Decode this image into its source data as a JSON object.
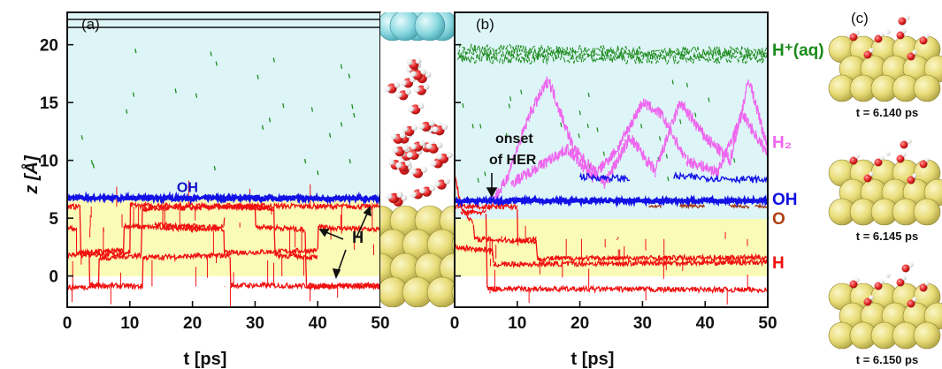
{
  "chart_data": [
    {
      "type": "line",
      "panel_label": "(a)",
      "xlabel": "t [ps]",
      "ylabel": "z [Å]",
      "xlim": [
        0,
        50
      ],
      "ylim": [
        -2.7,
        22.8
      ],
      "xticks": [
        0,
        10,
        20,
        30,
        40,
        50
      ],
      "yticks": [
        0,
        5,
        10,
        15,
        20
      ],
      "shaded_regions": [
        {
          "y": [
            0,
            6.8
          ],
          "color": "#fbfbb8"
        },
        {
          "y": [
            6.8,
            22.8
          ],
          "color": "#def5f8"
        }
      ],
      "series": [
        {
          "name": "OH",
          "color": "#1010e0",
          "level": 6.7
        },
        {
          "name": "H",
          "color": "#f01010",
          "levels": [
            6.0,
            4.2,
            1.8,
            -0.9
          ]
        },
        {
          "color": "#1a8a1a",
          "style": "sparse dashes",
          "range": [
            9,
            20
          ]
        }
      ],
      "annotations": [
        {
          "text": "OH",
          "color": "#1010c8",
          "x": 17.5,
          "y": 7.1
        },
        {
          "text": "H",
          "color": "#111111",
          "x": 45.5,
          "y": 3.4
        }
      ]
    },
    {
      "type": "line",
      "panel_label": "(b)",
      "xlabel": "t [ps]",
      "xlim": [
        0,
        50
      ],
      "ylim": [
        -2.7,
        22.8
      ],
      "xticks": [
        0,
        10,
        20,
        30,
        40,
        50
      ],
      "yticks": [
        0,
        5,
        10,
        15,
        20
      ],
      "shaded_regions": [
        {
          "y": [
            0,
            5.0
          ],
          "color": "#fbfbb8"
        },
        {
          "y": [
            5.0,
            22.8
          ],
          "color": "#def5f8"
        }
      ],
      "series": [
        {
          "name": "H+(aq)",
          "color": "#1a8a1a",
          "level": 19.5
        },
        {
          "name": "H2",
          "color": "#ee66ee",
          "range": [
            8,
            17.5
          ]
        },
        {
          "name": "OH",
          "color": "#1010e0",
          "level": 6.5
        },
        {
          "name": "O",
          "color": "#b04010",
          "level": 6.1
        },
        {
          "name": "H",
          "color": "#f01010",
          "levels": [
            3.2,
            1.5,
            -1.1
          ]
        }
      ],
      "annotations": [
        {
          "text": "onset",
          "x": 6.5,
          "y": 12.0
        },
        {
          "text": "of HER",
          "x": 6.5,
          "y": 9.6
        }
      ],
      "right_labels": [
        {
          "text": "H⁺(aq)",
          "color": "#1a8a1a",
          "y": 19.6
        },
        {
          "text": "H₂",
          "color": "#ee66ee",
          "y": 11.6
        },
        {
          "text": "OH",
          "color": "#1010e0",
          "y": 6.7
        },
        {
          "text": "O",
          "color": "#b04010",
          "y": 5.0
        },
        {
          "text": "H",
          "color": "#f01010",
          "y": 1.2
        }
      ]
    }
  ],
  "panel_c": {
    "label": "(c)",
    "snapshots": [
      "t = 6.140 ps",
      "t = 6.145 ps",
      "t = 6.150 ps"
    ]
  }
}
